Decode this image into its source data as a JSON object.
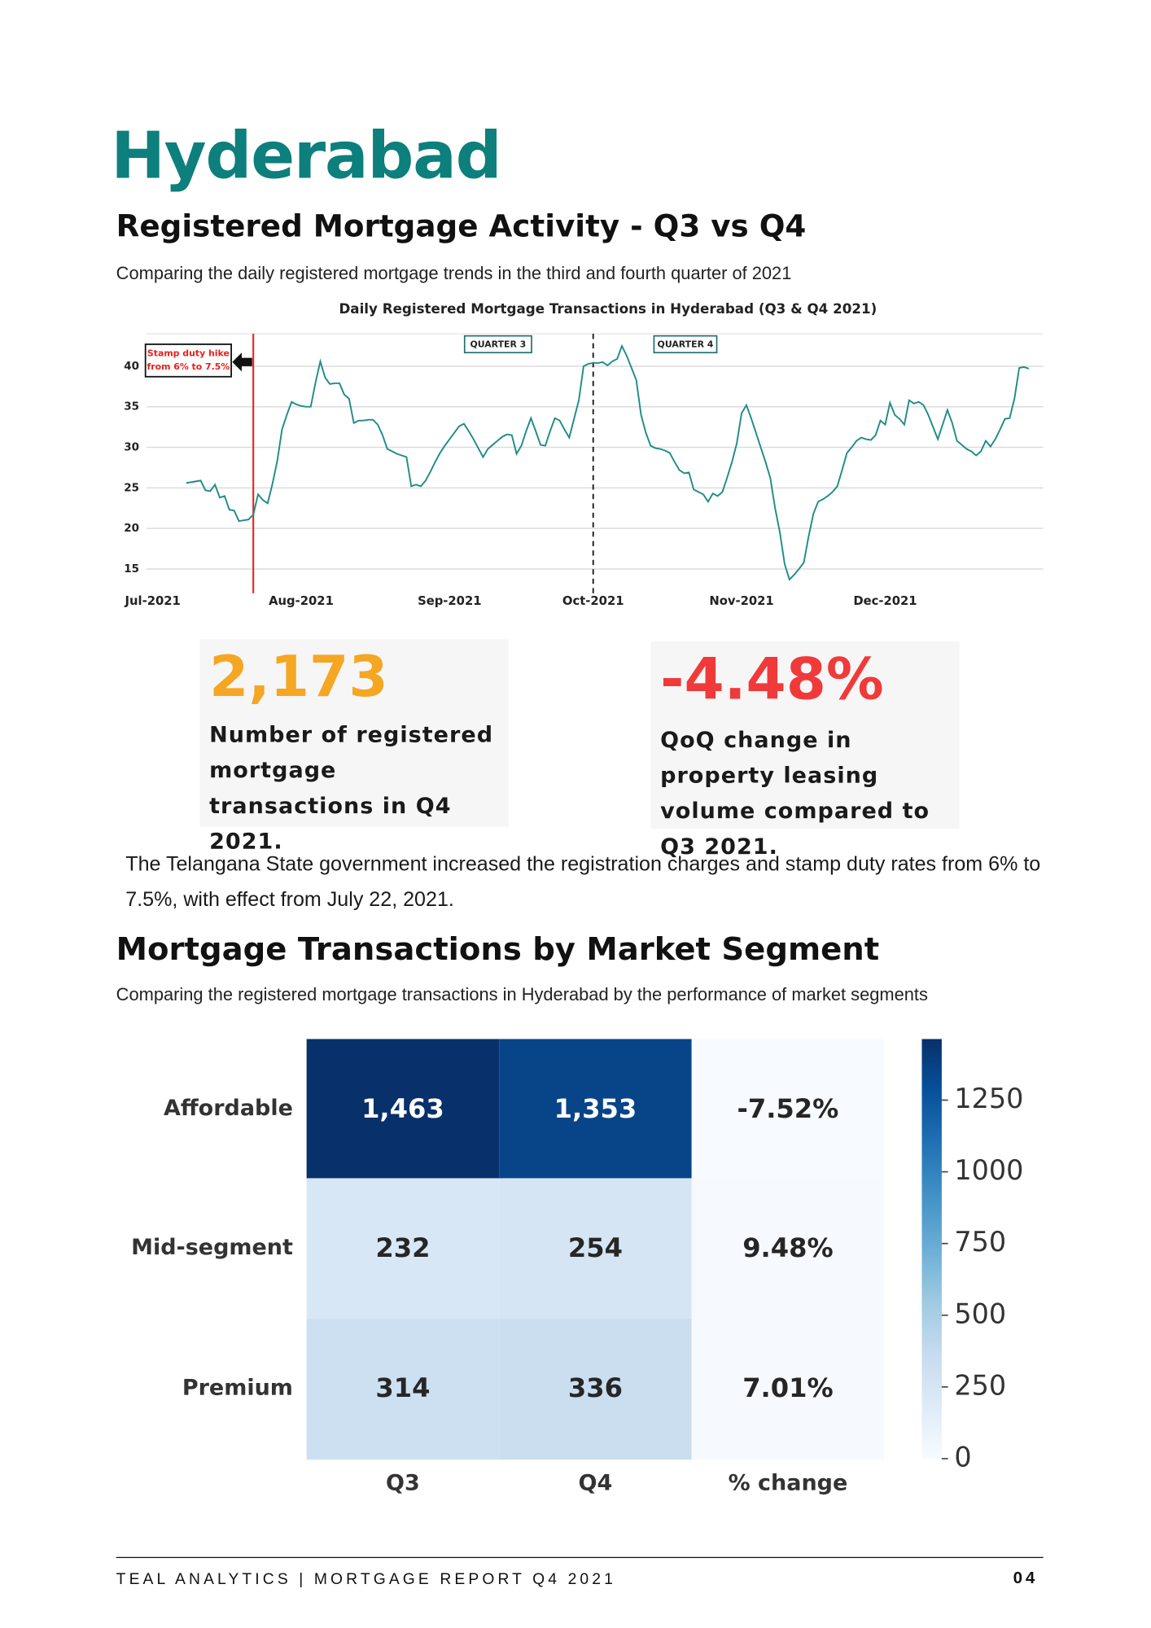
{
  "header": {
    "title": "Hyderabad"
  },
  "section1": {
    "heading": "Registered Mortgage Activity - Q3 vs Q4",
    "subheading": "Comparing the daily registered mortgage trends in the third and fourth quarter of 2021"
  },
  "stats": [
    {
      "value": "2,173",
      "description": "Number of registered mortgage transactions in Q4 2021."
    },
    {
      "value": "-4.48%",
      "description": "QoQ change in property leasing volume compared to Q3 2021."
    }
  ],
  "note": "The Telangana State government increased the registration charges and stamp duty rates from 6% to 7.5%, with effect from July 22, 2021.",
  "section2": {
    "heading": "Mortgage Transactions by Market Segment",
    "subheading": "Comparing the registered mortgage transactions in Hyderabad by the performance of market segments"
  },
  "footer": {
    "left": "TEAL ANALYTICS | MORTGAGE REPORT Q4 2021",
    "page": "04"
  },
  "chart_data": [
    {
      "type": "line",
      "title": "Daily Registered Mortgage Transactions in Hyderabad (Q3 & Q4 2021)",
      "color": "#1f8c8a",
      "grid": true,
      "ylim": [
        12,
        44
      ],
      "yticks": [
        15,
        20,
        25,
        30,
        35,
        40
      ],
      "annotations": {
        "stamp_duty": [
          "Stamp duty hike",
          "from 6% to 7.5%"
        ],
        "q3": "QUARTER 3",
        "q4": "QUARTER 4"
      },
      "x": [
        "Jul-2021",
        null,
        null,
        null,
        null,
        null,
        null,
        null,
        null,
        null,
        null,
        null,
        null,
        null,
        null,
        null,
        null,
        null,
        null,
        null,
        null,
        null,
        null,
        null,
        null,
        null,
        null,
        null,
        null,
        null,
        null,
        "Aug-2021",
        null,
        null,
        null,
        null,
        null,
        null,
        null,
        null,
        null,
        null,
        null,
        null,
        null,
        null,
        null,
        null,
        null,
        null,
        null,
        null,
        null,
        null,
        null,
        null,
        null,
        null,
        null,
        null,
        null,
        null,
        "Sep-2021",
        null,
        null,
        null,
        null,
        null,
        null,
        null,
        null,
        null,
        null,
        null,
        null,
        null,
        null,
        null,
        null,
        null,
        null,
        null,
        null,
        null,
        null,
        null,
        null,
        null,
        null,
        null,
        null,
        null,
        "Oct-2021",
        null,
        null,
        null,
        null,
        null,
        null,
        null,
        null,
        null,
        null,
        null,
        null,
        null,
        null,
        null,
        null,
        null,
        null,
        null,
        null,
        null,
        null,
        null,
        null,
        null,
        null,
        null,
        null,
        null,
        null,
        "Nov-2021",
        null,
        null,
        null,
        null,
        null,
        null,
        null,
        null,
        null,
        null,
        null,
        null,
        null,
        null,
        null,
        null,
        null,
        null,
        null,
        null,
        null,
        null,
        null,
        null,
        null,
        null,
        null,
        null,
        null,
        "Dec-2021",
        null,
        null,
        null,
        null,
        null,
        null,
        null,
        null,
        null,
        null,
        null,
        null,
        null,
        null,
        null,
        null,
        null,
        null,
        null,
        null,
        null,
        null,
        null,
        null,
        null,
        null,
        null,
        null,
        null,
        null
      ],
      "values": [
        null,
        null,
        null,
        null,
        null,
        null,
        null,
        25.6,
        25.7,
        25.8,
        25.9,
        24.7,
        24.6,
        25.4,
        23.8,
        24.0,
        22.3,
        22.2,
        20.9,
        21.0,
        21.1,
        21.7,
        24.2,
        23.5,
        23.1,
        25.5,
        28.3,
        32.2,
        34.0,
        35.6,
        35.3,
        35.1,
        35.0,
        35.0,
        38.0,
        40.6,
        38.6,
        37.8,
        37.9,
        37.9,
        36.5,
        36.0,
        33.0,
        33.3,
        33.3,
        33.4,
        33.4,
        32.8,
        31.5,
        29.8,
        29.5,
        29.2,
        29.0,
        28.8,
        25.2,
        25.4,
        25.2,
        25.9,
        27.0,
        28.2,
        29.3,
        30.2,
        31.0,
        31.8,
        32.6,
        32.9,
        32.0,
        31.0,
        29.9,
        28.8,
        29.8,
        30.3,
        30.8,
        31.3,
        31.6,
        31.5,
        29.2,
        30.2,
        32.0,
        33.6,
        32.0,
        30.3,
        30.2,
        32.0,
        33.6,
        33.3,
        32.2,
        31.2,
        33.5,
        35.8,
        40.0,
        40.3,
        40.4,
        40.4,
        40.5,
        40.1,
        40.6,
        40.9,
        42.5,
        41.3,
        39.8,
        38.3,
        34.0,
        31.8,
        30.2,
        29.9,
        29.8,
        29.6,
        29.3,
        28.2,
        27.2,
        26.8,
        26.9,
        24.8,
        24.5,
        24.2,
        23.3,
        24.3,
        24.0,
        24.5,
        26.3,
        28.2,
        30.5,
        34.2,
        35.2,
        33.6,
        31.8,
        30.0,
        28.2,
        26.2,
        22.5,
        19.5,
        15.6,
        13.7,
        14.3,
        15.0,
        15.8,
        19.0,
        21.8,
        23.3,
        23.6,
        24.0,
        24.5,
        25.2,
        27.2,
        29.3,
        30.0,
        30.8,
        31.2,
        31.0,
        30.9,
        31.5,
        33.3,
        32.8,
        35.5,
        34.0,
        33.5,
        32.8,
        35.8,
        35.4,
        35.6,
        35.2,
        34.0,
        32.5,
        31.0,
        32.8,
        34.6,
        33.0,
        30.8,
        30.3,
        29.8,
        29.5,
        29.0,
        29.5,
        30.8,
        30.1,
        31.0,
        32.2,
        33.5,
        33.6,
        36.0,
        39.8,
        39.9,
        39.7
      ]
    },
    {
      "type": "heatmap",
      "rows": [
        "Affordable",
        "Mid-segment",
        "Premium"
      ],
      "columns": [
        "Q3",
        "Q4",
        "% change"
      ],
      "values": [
        [
          1463,
          1353,
          -7.52
        ],
        [
          232,
          254,
          9.48
        ],
        [
          314,
          336,
          7.01
        ]
      ],
      "value_labels": [
        [
          "1,463",
          "1,353",
          "-7.52%"
        ],
        [
          "232",
          "254",
          "9.48%"
        ],
        [
          "314",
          "336",
          "7.01%"
        ]
      ],
      "colormap": "Blues",
      "clim": [
        0,
        1463
      ],
      "cticks": [
        0,
        250,
        500,
        750,
        1000,
        1250
      ]
    }
  ]
}
